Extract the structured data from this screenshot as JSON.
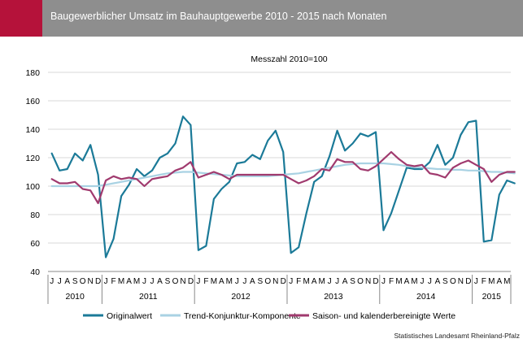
{
  "header": {
    "title": "Baugewerblicher Umsatz im Bauhauptgewerbe 2010 - 2015 nach Monaten"
  },
  "source": "Statistisches Landesamt Rheinland-Pfalz",
  "colors": {
    "accent": "#b5123a",
    "header_bg": "#8e8e8e",
    "original": "#1b7a98",
    "trend": "#a9d2e3",
    "seasonal": "#a03a6e",
    "grid": "#d9d9d9"
  },
  "chart_data": {
    "type": "line",
    "title": "Messzahl 2010=100",
    "ylim": [
      40,
      180
    ],
    "yticks": [
      "40",
      "60",
      "80",
      "100",
      "120",
      "140",
      "160",
      "180"
    ],
    "month_labels": [
      "J",
      "J",
      "A",
      "S",
      "O",
      "N",
      "D",
      "J",
      "F",
      "M",
      "A",
      "M",
      "J",
      "J",
      "A",
      "S",
      "O",
      "N",
      "D",
      "J",
      "F",
      "M",
      "A",
      "M",
      "J",
      "J",
      "A",
      "S",
      "O",
      "N",
      "D",
      "J",
      "F",
      "M",
      "A",
      "M",
      "J",
      "J",
      "A",
      "S",
      "O",
      "N",
      "D",
      "J",
      "F",
      "M",
      "A",
      "M",
      "J",
      "J",
      "A",
      "S",
      "O",
      "N",
      "D",
      "J",
      "F",
      "M",
      "A",
      "M"
    ],
    "years": [
      {
        "label": "2010",
        "months": 7
      },
      {
        "label": "2011",
        "months": 12
      },
      {
        "label": "2012",
        "months": 12
      },
      {
        "label": "2013",
        "months": 12
      },
      {
        "label": "2014",
        "months": 12
      },
      {
        "label": "2015",
        "months": 5
      }
    ],
    "grid": true,
    "legend_position": "bottom",
    "series": [
      {
        "name": "Originalwert",
        "color": "#1b7a98",
        "width": 2.2,
        "values": [
          123,
          111,
          112,
          123,
          118,
          129,
          108,
          50,
          63,
          93,
          101,
          112,
          107,
          111,
          120,
          123,
          130,
          149,
          143,
          55,
          58,
          91,
          98,
          103,
          116,
          117,
          122,
          119,
          132,
          139,
          124,
          53,
          57,
          81,
          103,
          107,
          121,
          139,
          125,
          130,
          137,
          135,
          138,
          69,
          81,
          97,
          113,
          112,
          112,
          117,
          129,
          115,
          120,
          136,
          145,
          146,
          61,
          62,
          94,
          104,
          102
        ]
      },
      {
        "name": "Trend-Konjunktur-Komponente",
        "color": "#a9d2e3",
        "width": 2.2,
        "values": [
          100,
          100,
          100,
          100,
          100,
          100,
          100,
          101,
          102,
          103,
          104,
          105,
          106,
          107,
          108,
          109,
          109.5,
          110,
          110,
          109.5,
          109,
          108.5,
          108,
          107.5,
          107,
          107,
          107,
          107,
          107,
          107.5,
          108,
          108.5,
          109,
          110,
          111,
          112,
          113,
          114,
          115,
          115.5,
          116,
          116,
          116,
          116,
          115.5,
          115,
          114,
          113.5,
          113,
          112.5,
          112,
          112,
          111.5,
          111.5,
          111,
          111,
          110.5,
          110,
          110,
          109.5,
          109
        ]
      },
      {
        "name": "Saison- und kalenderbereinigte Werte",
        "color": "#a03a6e",
        "width": 2.2,
        "values": [
          105,
          102,
          102,
          103,
          98,
          97,
          88,
          104,
          107,
          105,
          106,
          105,
          100,
          105,
          106,
          107,
          111,
          113,
          117,
          106,
          108,
          110,
          108,
          105,
          108,
          108,
          108,
          108,
          108,
          108,
          108,
          105,
          102,
          104,
          107,
          112,
          111,
          119,
          117,
          117,
          112,
          111,
          114,
          119,
          124,
          119,
          115,
          114,
          115,
          109,
          108,
          106,
          113,
          116,
          118,
          115,
          112,
          103,
          108,
          110,
          110
        ]
      }
    ]
  }
}
